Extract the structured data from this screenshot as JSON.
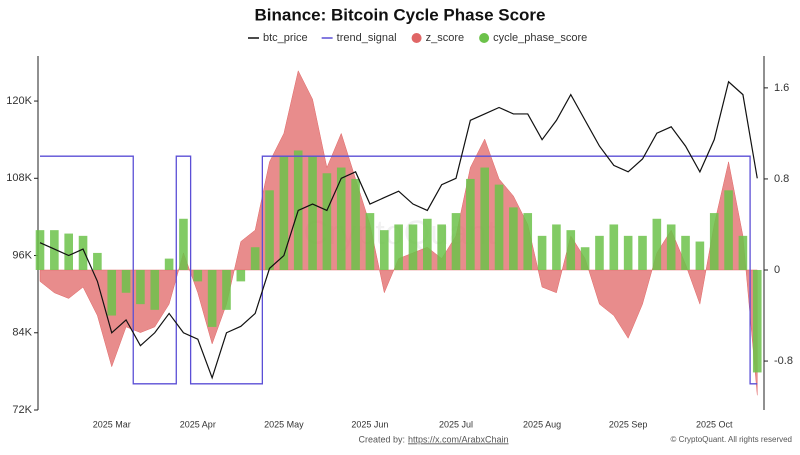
{
  "chart_data": {
    "type": "combo",
    "title": "Binance: Bitcoin Cycle Phase Score",
    "watermark": "CryptoQuant",
    "categories": [
      null,
      null,
      null,
      null,
      null,
      "2025 Mar",
      null,
      null,
      null,
      null,
      null,
      "2025 Apr",
      null,
      null,
      null,
      null,
      null,
      "2025 May",
      null,
      null,
      null,
      null,
      null,
      "2025 Jun",
      null,
      null,
      null,
      null,
      null,
      "2025 Jul",
      null,
      null,
      null,
      null,
      null,
      "2025 Aug",
      null,
      null,
      null,
      null,
      null,
      "2025 Sep",
      null,
      null,
      null,
      null,
      null,
      "2025 Oct",
      null,
      null,
      null
    ],
    "ylim": [
      72000,
      127000
    ],
    "yticks": [
      {
        "value": 72000,
        "label": "72K"
      },
      {
        "value": 84000,
        "label": "84K"
      },
      {
        "value": 96000,
        "label": "96K"
      },
      {
        "value": 108000,
        "label": "108K"
      },
      {
        "value": 120000,
        "label": "120K"
      }
    ],
    "y2lim": [
      -1.23,
      1.88
    ],
    "y2ticks": [
      1.6,
      0.8,
      0,
      -0.8
    ],
    "series": [
      {
        "name": "btc_price",
        "type": "line",
        "color": "#111111",
        "values": [
          98000,
          97000,
          96000,
          97000,
          92000,
          84000,
          86000,
          82000,
          84000,
          87000,
          84000,
          83000,
          77000,
          84000,
          85000,
          87000,
          94000,
          96000,
          103000,
          104000,
          103000,
          108000,
          109000,
          104000,
          105000,
          106000,
          104000,
          103000,
          107000,
          108000,
          117000,
          118000,
          119000,
          118000,
          118000,
          114000,
          117000,
          121000,
          117000,
          113000,
          110000,
          109000,
          111000,
          115000,
          116000,
          113000,
          109000,
          114000,
          123000,
          121000,
          108000
        ]
      },
      {
        "name": "trend_signal",
        "type": "step",
        "axis": "y2",
        "color": "#5b4fd6",
        "values": [
          1,
          1,
          1,
          1,
          1,
          1,
          1,
          -1,
          -1,
          -1,
          1,
          -1,
          -1,
          -1,
          -1,
          -1,
          1,
          1,
          1,
          1,
          1,
          1,
          1,
          1,
          1,
          1,
          1,
          1,
          1,
          1,
          1,
          1,
          1,
          1,
          1,
          1,
          1,
          1,
          1,
          1,
          1,
          1,
          1,
          1,
          1,
          1,
          1,
          1,
          1,
          1,
          -1
        ]
      },
      {
        "name": "z_score",
        "type": "area",
        "axis": "y2",
        "color": "#e06666",
        "values": [
          -0.1,
          -0.2,
          -0.25,
          -0.15,
          -0.4,
          -0.85,
          -0.5,
          -0.55,
          -0.5,
          -0.3,
          0.15,
          -0.2,
          -0.65,
          -0.3,
          0.25,
          0.35,
          0.95,
          1.2,
          1.75,
          1.5,
          0.9,
          1.2,
          0.8,
          0.4,
          -0.2,
          0.1,
          0.15,
          0.2,
          0.1,
          0.3,
          0.9,
          1.15,
          0.8,
          0.65,
          0.4,
          -0.15,
          -0.2,
          0.3,
          0.1,
          -0.3,
          -0.4,
          -0.6,
          -0.3,
          0.15,
          0.35,
          0.05,
          -0.3,
          0.4,
          0.95,
          0.3,
          -1.1
        ]
      },
      {
        "name": "cycle_phase_score",
        "type": "bar",
        "axis": "y2",
        "color": "#6cc24a",
        "values": [
          0.35,
          0.35,
          0.32,
          0.3,
          0.15,
          -0.4,
          -0.2,
          -0.3,
          -0.35,
          0.1,
          0.45,
          -0.1,
          -0.5,
          -0.35,
          -0.1,
          0.2,
          0.7,
          1.0,
          1.05,
          1.0,
          0.85,
          0.9,
          0.8,
          0.5,
          0.35,
          0.4,
          0.4,
          0.45,
          0.4,
          0.5,
          0.8,
          0.9,
          0.75,
          0.55,
          0.5,
          0.3,
          0.4,
          0.35,
          0.2,
          0.3,
          0.4,
          0.3,
          0.3,
          0.45,
          0.4,
          0.3,
          0.25,
          0.5,
          0.7,
          0.3,
          -0.9
        ]
      }
    ]
  },
  "footer": {
    "created_by": "Created by:",
    "link": "https://x.com/ArabxChain",
    "copyright": "© CryptoQuant. All rights reserved"
  }
}
